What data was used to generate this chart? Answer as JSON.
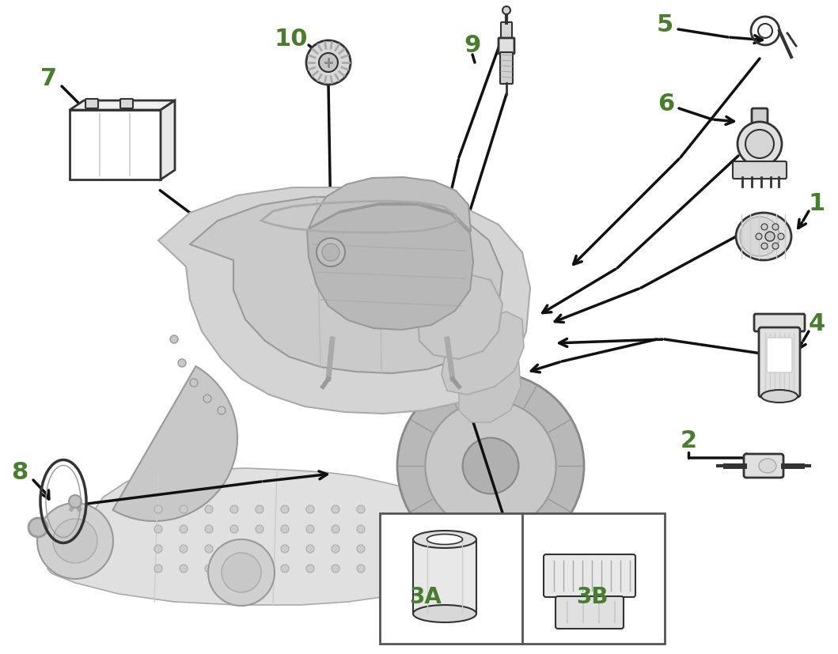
{
  "bg_color": "#ffffff",
  "label_color": "#4a7c2f",
  "line_color": "#111111",
  "part_line": "#222222",
  "label_fontsize": 22,
  "figsize": [
    10.59,
    8.28
  ],
  "dpi": 100,
  "mower_body_color": "#d8d8d8",
  "mower_edge_color": "#aaaaaa",
  "mower_dark_color": "#b0b0b0",
  "part_fill": "#e8e8e8",
  "part_edge": "#333333"
}
